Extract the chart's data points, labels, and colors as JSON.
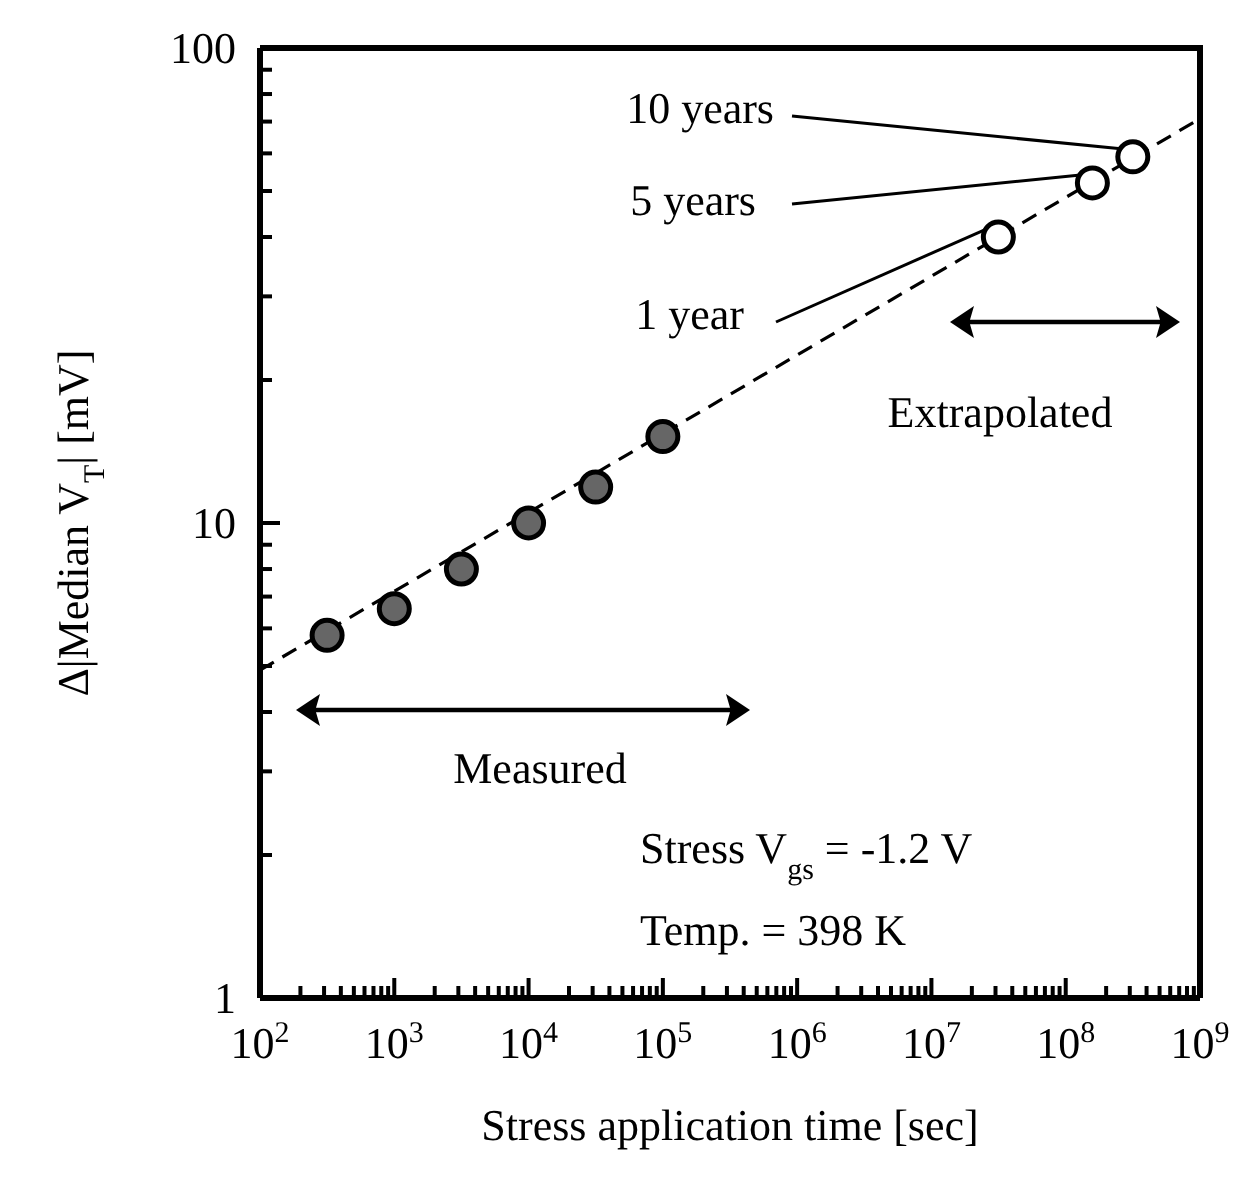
{
  "chart_data": {
    "type": "scatter",
    "xlabel": "Stress application time [sec]",
    "ylabel": "Δ|Median V$_{T}$| [mV]",
    "log": "xy",
    "marker": "circle",
    "xlim": [
      100,
      1000000000
    ],
    "ylim": [
      1,
      100
    ],
    "xticks": [
      {
        "value": 100,
        "label": "10$^{2}$"
      },
      {
        "value": 200,
        "label": null
      },
      {
        "value": 300,
        "label": null
      },
      {
        "value": 400,
        "label": null
      },
      {
        "value": 500,
        "label": null
      },
      {
        "value": 600,
        "label": null
      },
      {
        "value": 700,
        "label": null
      },
      {
        "value": 800,
        "label": null
      },
      {
        "value": 900,
        "label": null
      },
      {
        "value": 1000,
        "label": "10$^{3}$"
      },
      {
        "value": 2000,
        "label": null
      },
      {
        "value": 3000,
        "label": null
      },
      {
        "value": 4000,
        "label": null
      },
      {
        "value": 5000,
        "label": null
      },
      {
        "value": 6000,
        "label": null
      },
      {
        "value": 7000,
        "label": null
      },
      {
        "value": 8000,
        "label": null
      },
      {
        "value": 9000,
        "label": null
      },
      {
        "value": 10000,
        "label": "10$^{4}$"
      },
      {
        "value": 20000,
        "label": null
      },
      {
        "value": 30000,
        "label": null
      },
      {
        "value": 40000,
        "label": null
      },
      {
        "value": 50000,
        "label": null
      },
      {
        "value": 60000,
        "label": null
      },
      {
        "value": 70000,
        "label": null
      },
      {
        "value": 80000,
        "label": null
      },
      {
        "value": 90000,
        "label": null
      },
      {
        "value": 100000,
        "label": "10$^{5}$"
      },
      {
        "value": 200000,
        "label": null
      },
      {
        "value": 300000,
        "label": null
      },
      {
        "value": 400000,
        "label": null
      },
      {
        "value": 500000,
        "label": null
      },
      {
        "value": 600000,
        "label": null
      },
      {
        "value": 700000,
        "label": null
      },
      {
        "value": 800000,
        "label": null
      },
      {
        "value": 900000,
        "label": null
      },
      {
        "value": 1000000,
        "label": "10$^{6}$"
      },
      {
        "value": 2000000,
        "label": null
      },
      {
        "value": 3000000,
        "label": null
      },
      {
        "value": 4000000,
        "label": null
      },
      {
        "value": 5000000,
        "label": null
      },
      {
        "value": 6000000,
        "label": null
      },
      {
        "value": 7000000,
        "label": null
      },
      {
        "value": 8000000,
        "label": null
      },
      {
        "value": 9000000,
        "label": null
      },
      {
        "value": 10000000,
        "label": "10$^{7}$"
      },
      {
        "value": 20000000,
        "label": null
      },
      {
        "value": 30000000,
        "label": null
      },
      {
        "value": 40000000,
        "label": null
      },
      {
        "value": 50000000,
        "label": null
      },
      {
        "value": 60000000,
        "label": null
      },
      {
        "value": 70000000,
        "label": null
      },
      {
        "value": 80000000,
        "label": null
      },
      {
        "value": 90000000,
        "label": null
      },
      {
        "value": 100000000,
        "label": "10$^{8}$"
      },
      {
        "value": 200000000,
        "label": null
      },
      {
        "value": 300000000,
        "label": null
      },
      {
        "value": 400000000,
        "label": null
      },
      {
        "value": 500000000,
        "label": null
      },
      {
        "value": 600000000,
        "label": null
      },
      {
        "value": 700000000,
        "label": null
      },
      {
        "value": 800000000,
        "label": null
      },
      {
        "value": 900000000,
        "label": null
      },
      {
        "value": 1000000000,
        "label": "10$^{9}$"
      }
    ],
    "yticks": [
      1,
      {
        "value": 2,
        "label": null
      },
      {
        "value": 3,
        "label": null
      },
      {
        "value": 4,
        "label": null
      },
      {
        "value": 5,
        "label": null
      },
      {
        "value": 6,
        "label": null
      },
      {
        "value": 7,
        "label": null
      },
      {
        "value": 8,
        "label": null
      },
      {
        "value": 9,
        "label": null
      },
      10,
      {
        "value": 20,
        "label": null
      },
      {
        "value": 30,
        "label": null
      },
      {
        "value": 40,
        "label": null
      },
      {
        "value": 50,
        "label": null
      },
      {
        "value": 60,
        "label": null
      },
      {
        "value": 70,
        "label": null
      },
      {
        "value": 80,
        "label": null
      },
      {
        "value": 90,
        "label": null
      },
      100
    ],
    "series": [
      {
        "type": "line",
        "color": "#000000",
        "line_style": "dashed",
        "marker": "none",
        "x": [
          100,
          1000000000
        ],
        "values": [
          4.9,
          71
        ]
      },
      {
        "color": "#666666",
        "x": [
          316,
          1000,
          3160,
          10000,
          31600,
          100000
        ],
        "values": [
          5.8,
          6.6,
          8.0,
          10,
          11.9,
          15.2
        ]
      },
      {
        "color": "#ffffff",
        "x": [
          31500000,
          158000000,
          316000000
        ],
        "values": [
          40,
          52,
          59
        ]
      }
    ],
    "annotations": [
      {
        "text": "10 years",
        "x": 316000000,
        "y": 59
      },
      {
        "text": "5 years",
        "x": 158000000,
        "y": 52
      },
      {
        "text": "1 year",
        "x": 31500000,
        "y": 40
      },
      "Extrapolated",
      "Measured",
      "Stress V$_{gs}$ = -1.2 V",
      "Temp. = 398 K"
    ]
  }
}
